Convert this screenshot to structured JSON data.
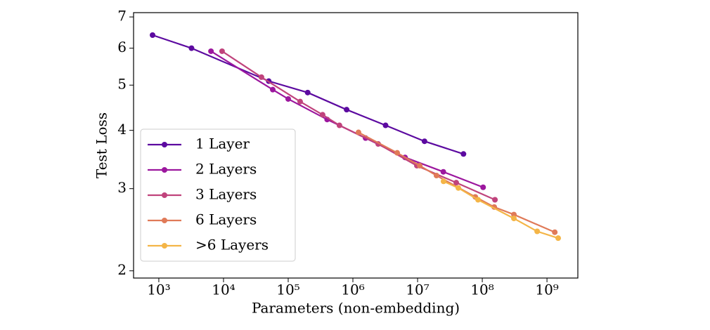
{
  "chart_data": {
    "type": "line",
    "xlabel": "Parameters (non-embedding)",
    "ylabel": "Test Loss",
    "xscale": "log",
    "yscale": "log",
    "xlim": [
      407,
      3000000000
    ],
    "ylim": [
      1.93,
      7.15
    ],
    "xticks": [
      {
        "value": 1000,
        "label": "10³"
      },
      {
        "value": 10000,
        "label": "10⁴"
      },
      {
        "value": 100000,
        "label": "10⁵"
      },
      {
        "value": 1000000,
        "label": "10⁶"
      },
      {
        "value": 10000000,
        "label": "10⁷"
      },
      {
        "value": 100000000,
        "label": "10⁸"
      },
      {
        "value": 1000000000,
        "label": "10⁹"
      }
    ],
    "yticks": [
      2,
      3,
      4,
      5,
      6,
      7
    ],
    "legend": "lower left",
    "series": [
      {
        "name": "1 Layer",
        "color": "#5c0aa0",
        "x": [
          800,
          3200,
          50000,
          200000,
          800000,
          3200000,
          12800000,
          51200000
        ],
        "values": [
          6.4,
          6.0,
          5.1,
          4.82,
          4.43,
          4.1,
          3.79,
          3.56
        ]
      },
      {
        "name": "2 Layers",
        "color": "#9c179e",
        "x": [
          6400,
          57700,
          100000,
          400000,
          1570000,
          6400000,
          25000000,
          103000000
        ],
        "values": [
          5.91,
          4.89,
          4.67,
          4.22,
          3.85,
          3.5,
          3.26,
          3.02
        ]
      },
      {
        "name": "3 Layers",
        "color": "#c0437c",
        "x": [
          9500,
          38600,
          153000,
          340000,
          620000,
          2460000,
          9750000,
          39600000,
          157000000
        ],
        "values": [
          5.91,
          5.2,
          4.61,
          4.32,
          4.1,
          3.74,
          3.36,
          3.09,
          2.84
        ]
      },
      {
        "name": "6 Layers",
        "color": "#e07a58",
        "x": [
          1220000,
          4840000,
          10800000,
          19600000,
          78000000,
          153000000,
          308000000,
          1320000000
        ],
        "values": [
          3.96,
          3.58,
          3.36,
          3.2,
          2.88,
          2.74,
          2.64,
          2.42
        ]
      },
      {
        "name": ">6 Layers",
        "color": "#f4b547",
        "x": [
          25200000,
          42700000,
          86000000,
          308000000,
          705000000,
          1490000000
        ],
        "values": [
          3.11,
          3.01,
          2.84,
          2.59,
          2.43,
          2.35
        ]
      }
    ]
  }
}
